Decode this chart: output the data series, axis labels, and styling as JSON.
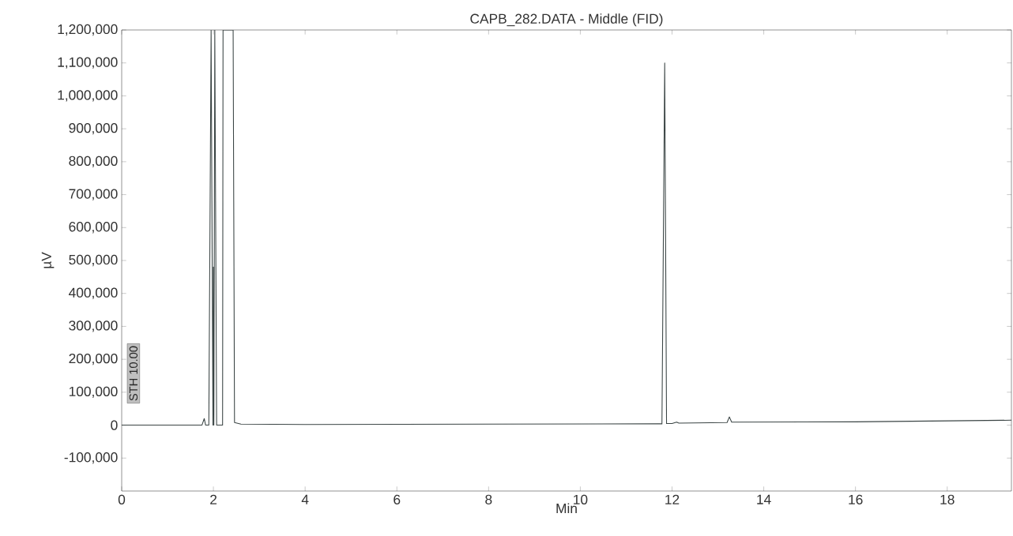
{
  "chart_data": {
    "type": "line",
    "title": "CAPB_282.DATA - Middle (FID)",
    "xlabel": "Min",
    "ylabel": "µV",
    "annotations": [
      "STH 10.00"
    ],
    "x": [
      0,
      1.75,
      1.8,
      1.83,
      1.9,
      1.95,
      1.99,
      2.0,
      2.01,
      2.03,
      2.07,
      2.12,
      2.2,
      2.21,
      2.43,
      2.46,
      2.6,
      4,
      8,
      11.7,
      11.78,
      11.84,
      11.88,
      12.0,
      12.1,
      12.15,
      13.2,
      13.25,
      13.3,
      16,
      19.4
    ],
    "series": [
      {
        "color": "#3a4444",
        "values": [
          0,
          0,
          20000,
          0,
          0,
          1200000,
          0,
          480000,
          0,
          1200000,
          0,
          0,
          0,
          1200000,
          1200000,
          8000,
          3000,
          2000,
          3000,
          4000,
          4000,
          1100000,
          5000,
          5000,
          9000,
          6000,
          8000,
          25000,
          9000,
          10000,
          15000
        ]
      }
    ],
    "line_style": "solid",
    "xlim": [
      0,
      19.4
    ],
    "ylim": [
      -200000,
      1200000
    ],
    "xticks": [
      0,
      2,
      4,
      6,
      8,
      10,
      12,
      14,
      16,
      18
    ],
    "yticks": [
      {
        "value": -100000,
        "label": "-100,000"
      },
      {
        "value": 0,
        "label": "0"
      },
      {
        "value": 100000,
        "label": "100,000"
      },
      {
        "value": 200000,
        "label": "200,000"
      },
      {
        "value": 300000,
        "label": "300,000"
      },
      {
        "value": 400000,
        "label": "400,000"
      },
      {
        "value": 500000,
        "label": "500,000"
      },
      {
        "value": 600000,
        "label": "600,000"
      },
      {
        "value": 700000,
        "label": "700,000"
      },
      {
        "value": 800000,
        "label": "800,000"
      },
      {
        "value": 900000,
        "label": "900,000"
      },
      {
        "value": 1000000,
        "label": "1,000,000"
      },
      {
        "value": 1100000,
        "label": "1,100,000"
      },
      {
        "value": 1200000,
        "label": "1,200,000"
      }
    ],
    "grid": false
  }
}
